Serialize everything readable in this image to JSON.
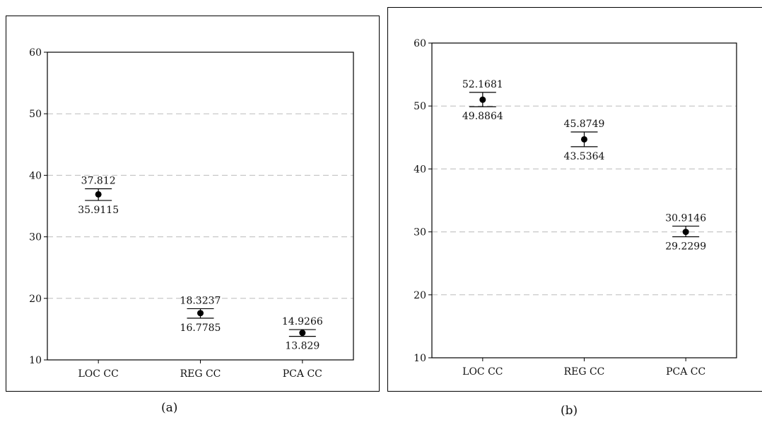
{
  "chart_data": [
    {
      "type": "errorbar",
      "caption": "(a)",
      "categories": [
        "LOC CC",
        "REG CC",
        "PCA CC"
      ],
      "ylim": [
        10,
        60
      ],
      "yticks": [
        10,
        20,
        30,
        40,
        50,
        60
      ],
      "grid": "dashed horizontal",
      "points": [
        {
          "category": "LOC CC",
          "mean": 36.9,
          "upper": 37.812,
          "lower": 35.9115,
          "upper_label": "37.812",
          "lower_label": "35.9115"
        },
        {
          "category": "REG CC",
          "mean": 17.6,
          "upper": 18.3237,
          "lower": 16.7785,
          "upper_label": "18.3237",
          "lower_label": "16.7785"
        },
        {
          "category": "PCA CC",
          "mean": 14.4,
          "upper": 14.9266,
          "lower": 13.829,
          "upper_label": "14.9266",
          "lower_label": "13.829"
        }
      ]
    },
    {
      "type": "errorbar",
      "caption": "(b)",
      "categories": [
        "LOC CC",
        "REG CC",
        "PCA CC"
      ],
      "ylim": [
        10,
        60
      ],
      "yticks": [
        10,
        20,
        30,
        40,
        50,
        60
      ],
      "grid": "dashed horizontal",
      "points": [
        {
          "category": "LOC CC",
          "mean": 51.0,
          "upper": 52.1681,
          "lower": 49.8864,
          "upper_label": "52.1681",
          "lower_label": "49.8864"
        },
        {
          "category": "REG CC",
          "mean": 44.7,
          "upper": 45.8749,
          "lower": 43.5364,
          "upper_label": "45.8749",
          "lower_label": "43.5364"
        },
        {
          "category": "PCA CC",
          "mean": 30.0,
          "upper": 30.9146,
          "lower": 29.2299,
          "upper_label": "30.9146",
          "lower_label": "29.2299"
        }
      ]
    }
  ],
  "colors": {
    "grid": "#bbbbbb",
    "axis": "#000000",
    "marker": "#000000",
    "watermark": "#00b4f0"
  }
}
